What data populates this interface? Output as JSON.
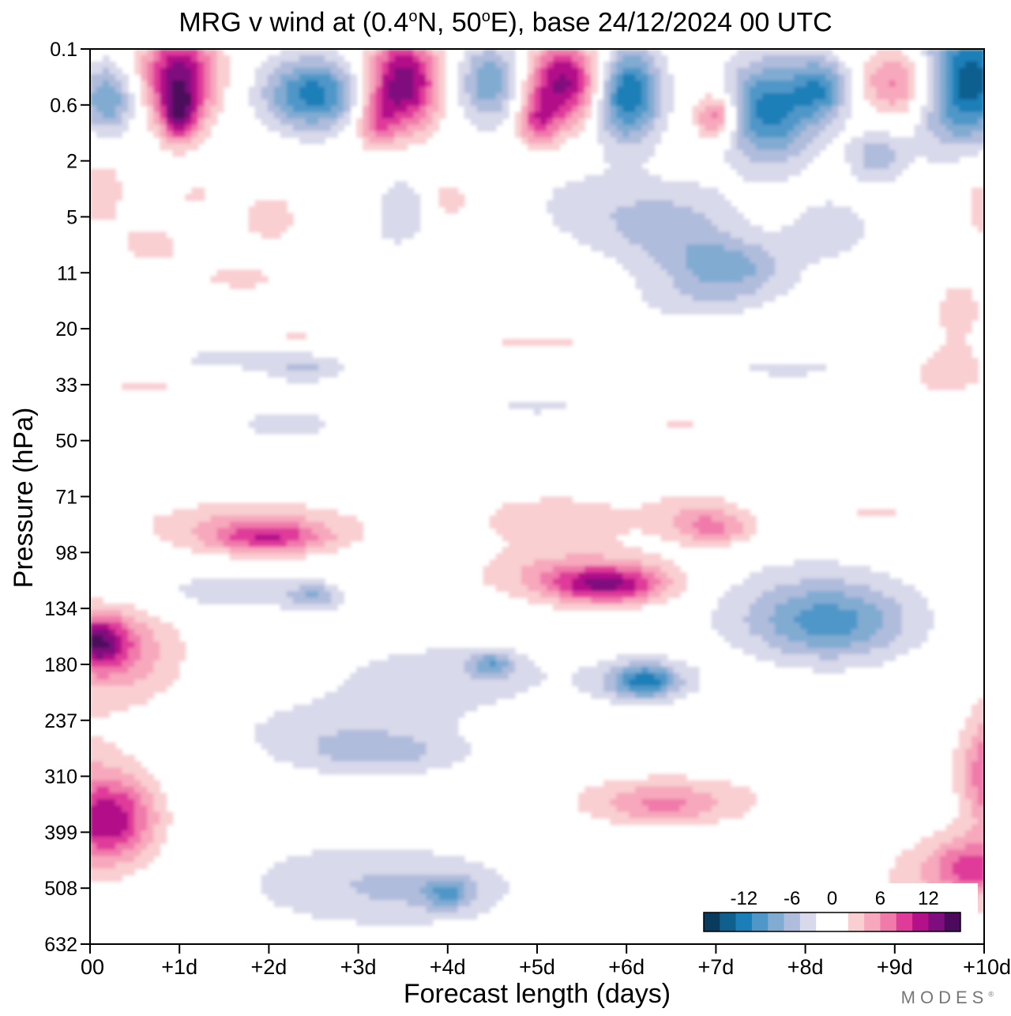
{
  "chart_data": {
    "type": "heatmap",
    "title_prefix": "MRG v wind at (0.4",
    "title_deg1": "o",
    "title_mid": "N, 50",
    "title_deg2": "o",
    "title_suffix": "E),  base 24/12/2024  00 UTC",
    "xlabel": "Forecast length (days)",
    "ylabel": "Pressure (hPa)",
    "x_ticks": [
      "00",
      "+1d",
      "+2d",
      "+3d",
      "+4d",
      "+5d",
      "+6d",
      "+7d",
      "+8d",
      "+9d",
      "+10d"
    ],
    "xlim": [
      0,
      10
    ],
    "y_ticks": [
      "0.1",
      "0.6",
      "2",
      "5",
      "11",
      "20",
      "33",
      "50",
      "71",
      "98",
      "134",
      "180",
      "237",
      "310",
      "399",
      "508",
      "632"
    ],
    "y_scale": "log-pressure",
    "colorbar": {
      "labels": [
        "-12",
        "-6",
        "0",
        "6",
        "12"
      ],
      "colors": [
        "#0a3a5c",
        "#0f5f8f",
        "#1a7fb8",
        "#4f97c8",
        "#82abd2",
        "#b0bcdb",
        "#d8d9ea",
        "#ffffff",
        "#ffffff",
        "#f9cfd2",
        "#f7a8bc",
        "#f07aaa",
        "#e03b9a",
        "#b3108a",
        "#800d7e",
        "#4b0a5c"
      ],
      "placement": "bottom-right"
    },
    "watermark": "MODES",
    "watermark_mark": "®"
  }
}
